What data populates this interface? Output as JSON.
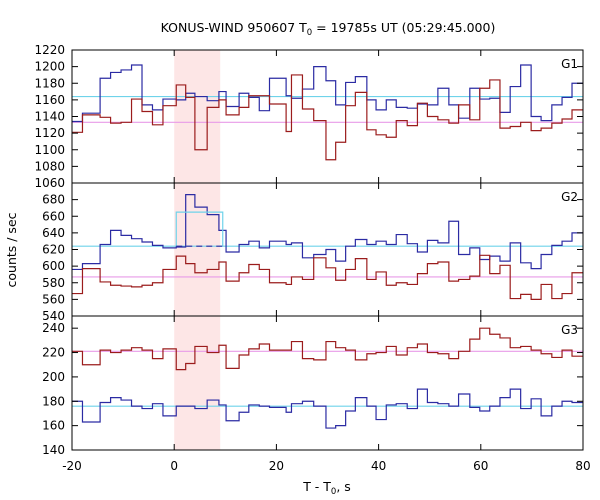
{
  "title": "KONUS-WIND 950607 T",
  "title_sub": "0",
  "title_rest": " = 19785s UT (05:29:45.000)",
  "colors": {
    "blue": "#2b2ba3",
    "red": "#9b1c1c",
    "cyan": "#6fd3ea",
    "magenta": "#e89be8",
    "shade": "#fde6e6"
  },
  "chart_data": {
    "type": "line",
    "x_range": [
      -20,
      80
    ],
    "x_ticks": [
      -20,
      0,
      20,
      40,
      60,
      80
    ],
    "xlabel_main": "T - T",
    "xlabel_sub": "0",
    "xlabel_tail": ", s",
    "ylabel": "counts / sec",
    "shaded_interval": [
      0,
      9
    ],
    "panels": [
      {
        "label": "G1",
        "ylim": [
          1060,
          1220
        ],
        "yticks": [
          1060,
          1080,
          1100,
          1120,
          1140,
          1160,
          1180,
          1200,
          1220
        ],
        "bin_edges": [
          -20,
          -17.95,
          -14.5,
          -12.45,
          -10.4,
          -8.35,
          -6.3,
          -4.25,
          -2.2,
          0.4,
          2.25,
          4.05,
          6.45,
          8.75,
          10.15,
          12.7,
          14.6,
          16.65,
          18.65,
          21.9,
          22.95,
          25.1,
          27.3,
          29.7,
          31.6,
          33.55,
          35.45,
          37.7,
          39.5,
          41.5,
          43.45,
          45.6,
          47.6,
          49.55,
          51.6,
          53.75,
          55.65,
          57.85,
          59.8,
          61.75,
          63.75,
          65.75,
          67.8,
          69.85,
          71.8,
          73.9,
          75.9,
          77.85,
          80
        ],
        "series": [
          {
            "color": "blue",
            "values": [
              1134,
              1144,
              1186,
              1193,
              1196,
              1202,
              1154,
              1148,
              1161,
              1160,
              1168,
              1164,
              1159,
              1170,
              1152,
              1168,
              1163,
              1147,
              1186,
              1165,
              1162,
              1173,
              1200,
              1183,
              1154,
              1181,
              1188,
              1160,
              1148,
              1160,
              1151,
              1150,
              1155,
              1154,
              1174,
              1154,
              1138,
              1174,
              1161,
              1162,
              1145,
              1176,
              1202,
              1140,
              1135,
              1154,
              1163,
              1180
            ]
          },
          {
            "color": "red",
            "values": [
              1121,
              1142,
              1139,
              1132,
              1133,
              1161,
              1146,
              1130,
              1153,
              1178,
              1163,
              1100,
              1151,
              1160,
              1142,
              1151,
              1165,
              1165,
              1155,
              1122,
              1190,
              1149,
              1135,
              1088,
              1109,
              1153,
              1169,
              1124,
              1118,
              1115,
              1135,
              1129,
              1156,
              1140,
              1136,
              1132,
              1154,
              1136,
              1174,
              1184,
              1126,
              1128,
              1133,
              1123,
              1126,
              1132,
              1137,
              1148
            ]
          }
        ],
        "mean_lines": [
          {
            "color": "cyan",
            "value": 1164
          },
          {
            "color": "magenta",
            "value": 1133
          }
        ]
      },
      {
        "label": "G2",
        "ylim": [
          540,
          700
        ],
        "yticks": [
          540,
          560,
          580,
          600,
          620,
          640,
          660,
          680
        ],
        "bin_edges": [
          -20,
          -17.95,
          -14.5,
          -12.45,
          -10.4,
          -8.35,
          -6.3,
          -4.25,
          -2.2,
          0.4,
          2.25,
          4.05,
          6.45,
          8.75,
          10.15,
          12.7,
          14.6,
          16.65,
          18.65,
          21.9,
          22.95,
          25.1,
          27.3,
          29.7,
          31.6,
          33.55,
          35.45,
          37.7,
          39.5,
          41.5,
          43.45,
          45.6,
          47.6,
          49.55,
          51.6,
          53.75,
          55.65,
          57.85,
          59.8,
          61.75,
          63.75,
          65.75,
          67.8,
          69.85,
          71.8,
          73.9,
          75.9,
          77.85,
          80
        ],
        "series": [
          {
            "color": "blue",
            "values": [
              596,
              603,
              626,
              643,
              637,
              633,
              629,
              625,
              622,
              623,
              686,
              671,
              662,
              643,
              617,
              626,
              630,
              622,
              630,
              626,
              628,
              610,
              614,
              620,
              606,
              624,
              632,
              626,
              630,
              626,
              638,
              627,
              617,
              631,
              628,
              654,
              614,
              622,
              608,
              612,
              606,
              628,
              604,
              597,
              614,
              625,
              630,
              640
            ]
          },
          {
            "color": "red",
            "values": [
              567,
              597,
              581,
              577,
              576,
              575,
              577,
              580,
              596,
              612,
              603,
              592,
              596,
              605,
              582,
              592,
              602,
              596,
              580,
              578,
              587,
              584,
              610,
              598,
              583,
              596,
              609,
              584,
              593,
              577,
              580,
              578,
              591,
              603,
              605,
              582,
              584,
              588,
              613,
              591,
              601,
              561,
              566,
              560,
              578,
              561,
              567,
              592
            ]
          }
        ],
        "mean_lines": [
          {
            "color": "cyan",
            "value": 624
          },
          {
            "color": "magenta",
            "value": 587
          }
        ],
        "highlight_segment": {
          "x_start": 0.4,
          "x_end": 9.5,
          "value": 665
        }
      },
      {
        "label": "G3",
        "ylim": [
          140,
          250
        ],
        "yticks": [
          140,
          160,
          180,
          200,
          220,
          240
        ],
        "bin_edges": [
          -20,
          -17.95,
          -14.5,
          -12.45,
          -10.4,
          -8.35,
          -6.3,
          -4.25,
          -2.2,
          0.4,
          2.25,
          4.05,
          6.45,
          8.75,
          10.15,
          12.7,
          14.6,
          16.65,
          18.65,
          21.9,
          22.95,
          25.1,
          27.3,
          29.7,
          31.6,
          33.55,
          35.45,
          37.7,
          39.5,
          41.5,
          43.45,
          45.6,
          47.6,
          49.55,
          51.6,
          53.75,
          55.65,
          57.85,
          59.8,
          61.75,
          63.75,
          65.75,
          67.8,
          69.85,
          71.8,
          73.9,
          75.9,
          77.85,
          80
        ],
        "series": [
          {
            "color": "blue",
            "values": [
              180,
              163,
              179,
              183,
              181,
              176,
              174,
              178,
              168,
              176,
              176,
              174,
              181,
              177,
              164,
              171,
              177,
              176,
              175,
              171,
              178,
              180,
              176,
              158,
              160,
              172,
              183,
              176,
              165,
              177,
              178,
              174,
              190,
              179,
              178,
              176,
              186,
              175,
              172,
              176,
              183,
              190,
              174,
              182,
              168,
              176,
              180,
              179
            ]
          },
          {
            "color": "red",
            "values": [
              221,
              210,
              222,
              220,
              222,
              224,
              222,
              215,
              223,
              206,
              211,
              225,
              220,
              226,
              207,
              218,
              223,
              227,
              222,
              222,
              229,
              215,
              214,
              229,
              224,
              222,
              214,
              219,
              220,
              225,
              218,
              224,
              227,
              220,
              219,
              215,
              221,
              231,
              240,
              235,
              232,
              224,
              225,
              222,
              219,
              216,
              222,
              217
            ]
          }
        ],
        "mean_lines": [
          {
            "color": "cyan",
            "value": 176
          },
          {
            "color": "magenta",
            "value": 221
          }
        ]
      }
    ]
  }
}
